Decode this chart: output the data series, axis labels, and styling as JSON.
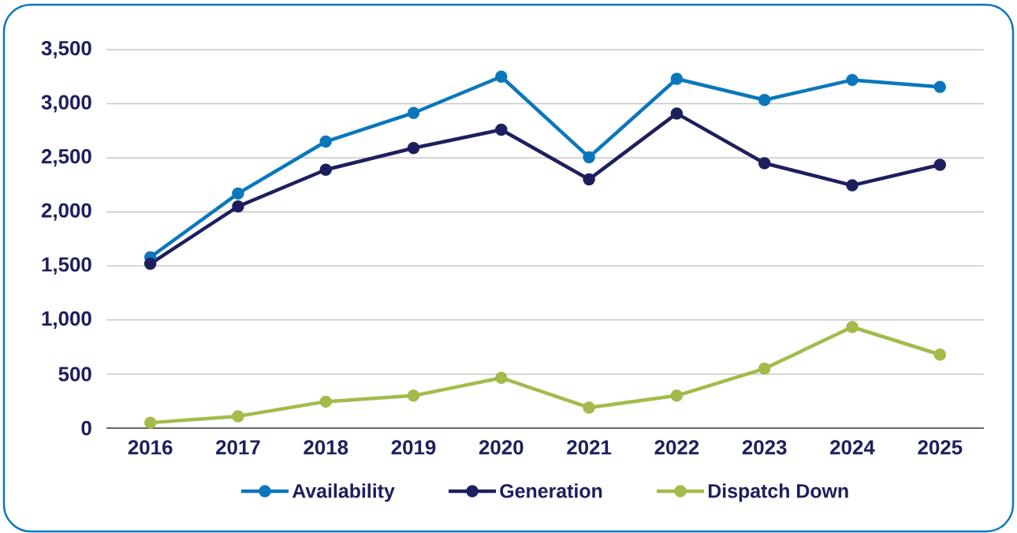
{
  "chart_data": {
    "type": "line",
    "categories": [
      "2016",
      "2017",
      "2018",
      "2019",
      "2020",
      "2021",
      "2022",
      "2023",
      "2024",
      "2025"
    ],
    "series": [
      {
        "name": "Availability",
        "color": "#0a77bd",
        "values": [
          1580,
          2170,
          2650,
          2915,
          3250,
          2505,
          3230,
          3035,
          3220,
          3155
        ]
      },
      {
        "name": "Generation",
        "color": "#1e1f5e",
        "values": [
          1520,
          2050,
          2390,
          2590,
          2760,
          2300,
          2910,
          2450,
          2245,
          2435
        ]
      },
      {
        "name": "Dispatch Down",
        "color": "#a3bb4a",
        "values": [
          50,
          110,
          245,
          300,
          465,
          190,
          300,
          550,
          935,
          680
        ]
      }
    ],
    "ylim": [
      0,
      3500
    ],
    "yticks": [
      0,
      500,
      {
        "value": 1000,
        "label": "1,000"
      },
      {
        "value": 1500,
        "label": "1,500"
      },
      {
        "value": 2000,
        "label": "2,000"
      },
      {
        "value": 2500,
        "label": "2,500"
      },
      {
        "value": 3000,
        "label": "3,000"
      },
      {
        "value": 3500,
        "label": "3,500"
      }
    ],
    "grid": "y",
    "legend": "bottom",
    "marker": "circle",
    "line_style": "solid"
  }
}
